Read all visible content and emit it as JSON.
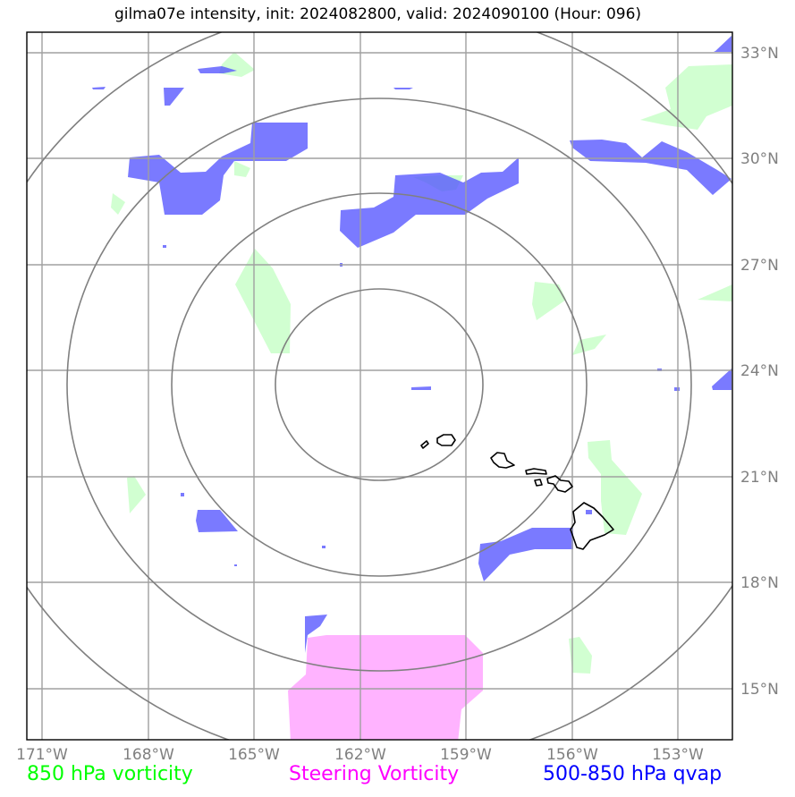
{
  "title": "gilma07e intensity, init: 2024082800, valid: 2024090100 (Hour: 096)",
  "longitude_ticks": [
    "171°W",
    "168°W",
    "165°W",
    "162°W",
    "159°W",
    "156°W",
    "153°W"
  ],
  "latitude_ticks": [
    "33°N",
    "30°N",
    "27°N",
    "24°N",
    "21°N",
    "18°N",
    "15°N"
  ],
  "legend": [
    {
      "label": "850 hPa vorticity",
      "color": "#00ff00"
    },
    {
      "label": "Steering Vorticity",
      "color": "#ff00ff"
    },
    {
      "label": "500-850 hPa qvap",
      "color": "#0000ff"
    }
  ],
  "colors": {
    "vorticity_fill": "#ccffcc",
    "steering_fill": "#ff99ff",
    "qvap_fill": "#6666ff",
    "gridline": "#a0a0a0",
    "range_ring": "#808080",
    "coastline": "#000000"
  },
  "map": {
    "extent_lon": [
      -171.4,
      -151.4
    ],
    "extent_lat": [
      13.7,
      33.6
    ],
    "range_ring_count": 4
  }
}
